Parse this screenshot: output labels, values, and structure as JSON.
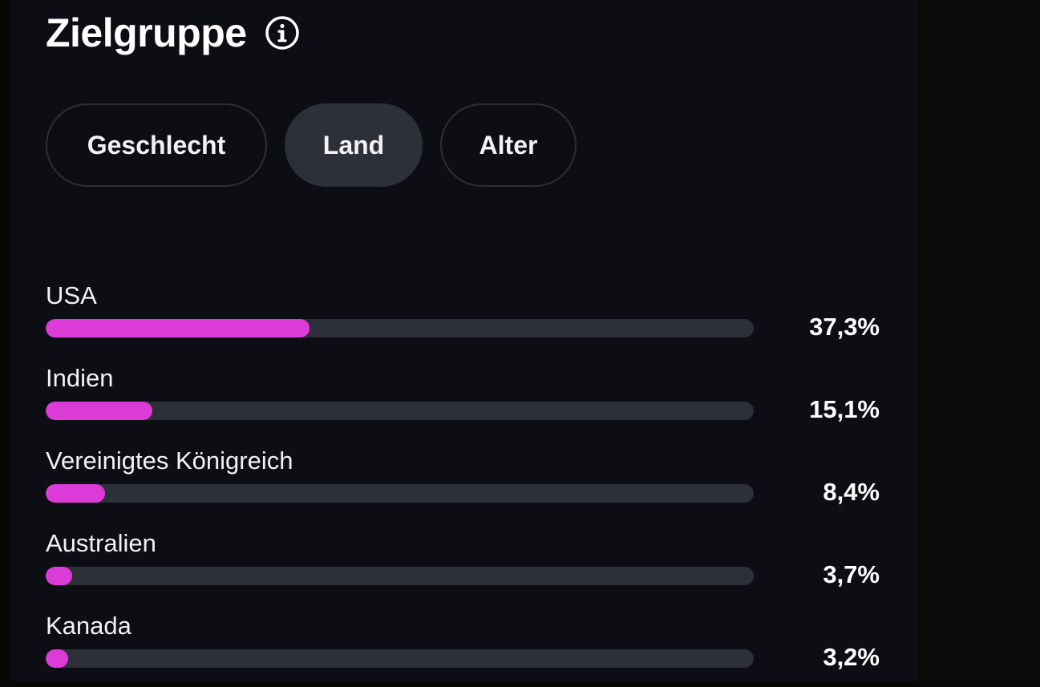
{
  "header": {
    "title": "Zielgruppe",
    "info_icon": "info-circle-icon"
  },
  "tabs": [
    {
      "label": "Geschlecht",
      "active": false
    },
    {
      "label": "Land",
      "active": true
    },
    {
      "label": "Alter",
      "active": false
    }
  ],
  "colors": {
    "accent": "#dc3bd7",
    "track": "#2d3038",
    "panel_bg": "#0c0e14"
  },
  "countries": [
    {
      "name": "USA",
      "percent_label": "37,3%",
      "share": 37.3
    },
    {
      "name": "Indien",
      "percent_label": "15,1%",
      "share": 15.1
    },
    {
      "name": "Vereinigtes Königreich",
      "percent_label": "8,4%",
      "share": 8.4
    },
    {
      "name": "Australien",
      "percent_label": "3,7%",
      "share": 3.7
    },
    {
      "name": "Kanada",
      "percent_label": "3,2%",
      "share": 3.2
    }
  ]
}
